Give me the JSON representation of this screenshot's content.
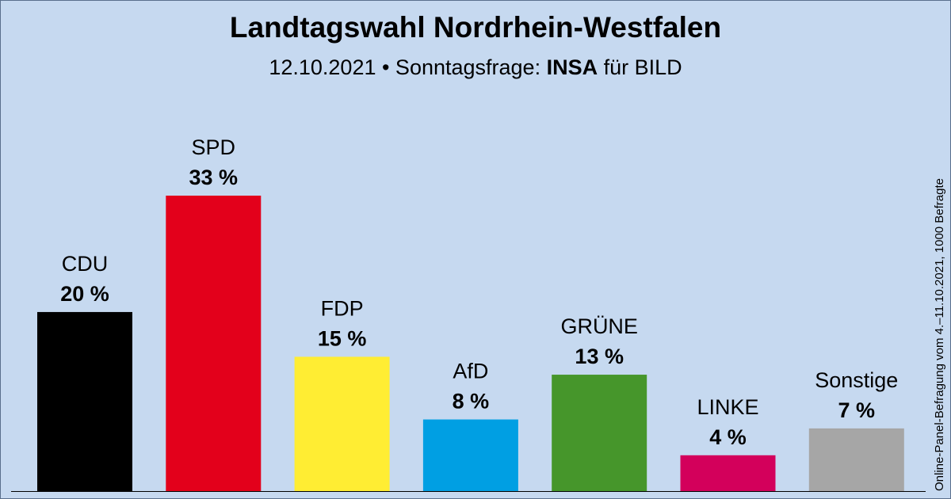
{
  "title": "Landtagswahl Nordrhein-Westfalen",
  "subtitle": {
    "prefix": "12.10.2021 • Sonntagsfrage: ",
    "institute": "INSA",
    "suffix": " für BILD"
  },
  "side_note": "Online-Panel-Befragung vom 4.–11.10.2021, 1000 Befragte",
  "chart_data": {
    "type": "bar",
    "title": "Landtagswahl Nordrhein-Westfalen",
    "categories": [
      "CDU",
      "SPD",
      "FDP",
      "AfD",
      "GRÜNE",
      "LINKE",
      "Sonstige"
    ],
    "values": [
      20,
      33,
      15,
      8,
      13,
      4,
      7
    ],
    "value_labels": [
      "20 %",
      "33 %",
      "15 %",
      "8 %",
      "13 %",
      "4 %",
      "7 %"
    ],
    "colors": [
      "#000000",
      "#e3001b",
      "#ffed33",
      "#009fe3",
      "#46962b",
      "#d3005b",
      "#a6a6a6"
    ],
    "ylim": [
      0,
      33
    ],
    "grid": false,
    "legend": "none"
  }
}
